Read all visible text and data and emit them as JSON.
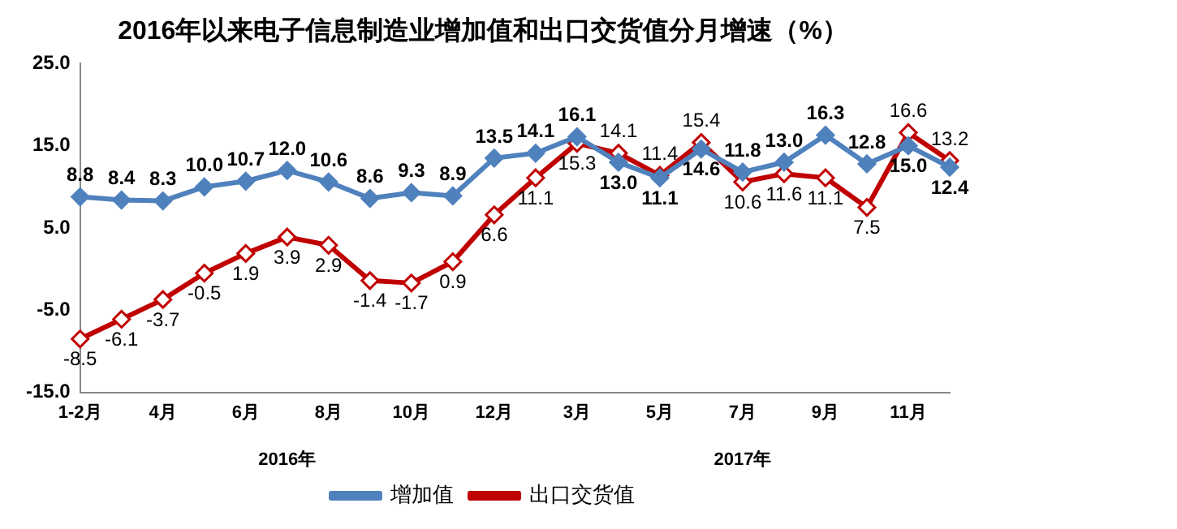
{
  "chart_data": {
    "type": "line",
    "title": "2016年以来电子信息制造业增加值和出口交货值分月增速（%）",
    "categories": [
      "1-2月",
      null,
      "4月",
      null,
      "6月",
      null,
      "8月",
      null,
      "10月",
      null,
      "12月",
      null,
      "3月",
      null,
      "5月",
      null,
      "7月",
      null,
      "9月",
      null,
      "11月",
      null
    ],
    "series": [
      {
        "name": "增加值",
        "color": "#4f81bd",
        "marker": "diamond",
        "values": [
          8.8,
          8.4,
          8.3,
          10.0,
          10.7,
          12.0,
          10.6,
          8.6,
          9.3,
          8.9,
          13.5,
          14.1,
          16.1,
          13.0,
          11.1,
          14.6,
          11.8,
          13.0,
          16.3,
          12.8,
          15.0,
          12.4
        ],
        "value_labels": [
          "8.8",
          "8.4",
          "8.3",
          "10.0",
          "10.7",
          "12.0",
          "10.6",
          "8.6",
          "9.3",
          "8.9",
          "13.5",
          "14.1",
          "16.1",
          "13.0",
          "11.1",
          "14.6",
          "11.8",
          "13.0",
          "16.3",
          "12.8",
          "15.0",
          "12.4"
        ]
      },
      {
        "name": "出口交货值",
        "color": "#c00000",
        "marker": "diamond",
        "values": [
          -8.5,
          -6.1,
          -3.7,
          -0.5,
          1.9,
          3.9,
          2.9,
          -1.4,
          -1.7,
          0.9,
          6.6,
          11.1,
          15.3,
          14.1,
          11.4,
          15.4,
          10.6,
          11.6,
          11.1,
          7.5,
          16.6,
          13.2
        ],
        "value_labels": [
          "-8.5",
          "-6.1",
          "-3.7",
          "-0.5",
          "1.9",
          "3.9",
          "2.9",
          "-1.4",
          "-1.7",
          "0.9",
          "6.6",
          "11.1",
          "15.3",
          "14.1",
          "11.4",
          "15.4",
          "10.6",
          "11.6",
          "11.1",
          "7.5",
          "16.6",
          "13.2"
        ]
      }
    ],
    "ylim": [
      -15,
      25
    ],
    "yticks": [
      {
        "value": -15,
        "label": "-15.0"
      },
      {
        "value": -5,
        "label": "-5.0"
      },
      {
        "value": 5,
        "label": "5.0"
      },
      {
        "value": 15,
        "label": "15.0"
      },
      {
        "value": 25,
        "label": "25.0"
      }
    ],
    "grid": false,
    "legend": "bottom",
    "line_style": "solid",
    "annotations": [
      "2016年",
      "2017年"
    ]
  }
}
